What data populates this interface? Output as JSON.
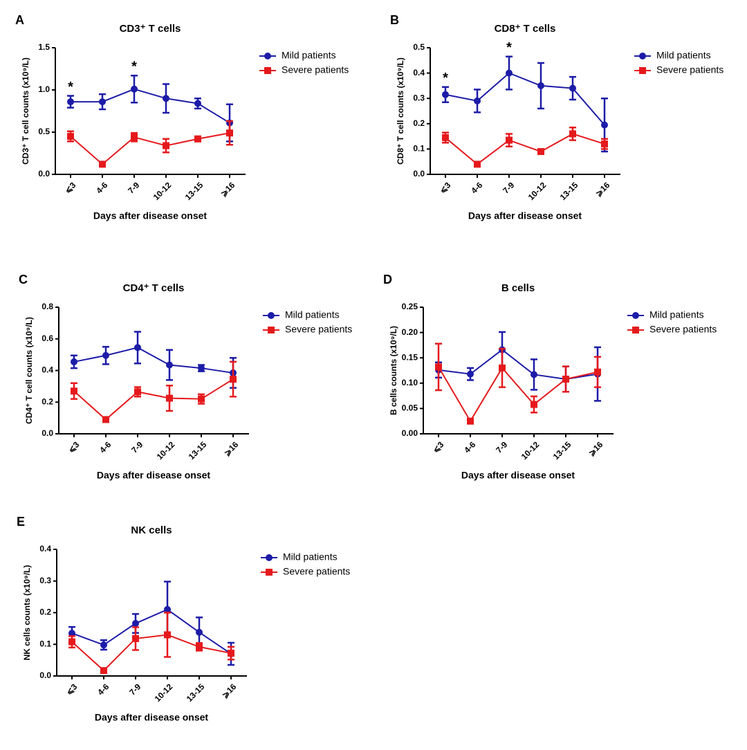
{
  "chart_data": [
    {
      "type": "line",
      "panel": "A",
      "title": "CD3⁺ T cells",
      "ylabel": "CD3⁺ T cell counts (x10⁹/L)",
      "xlabel": "Days after disease onset",
      "categories": [
        "⩽3",
        "4-6",
        "7-9",
        "10-12",
        "13-15",
        "⩾16"
      ],
      "ylim": [
        0,
        1.5
      ],
      "yticks": [
        {
          "value": 0,
          "label": "0.0"
        },
        0.5,
        {
          "value": 1,
          "label": "1.0"
        },
        1.5
      ],
      "legend": "right",
      "series": [
        {
          "name": "Mild patients",
          "color": "#1c1ca8",
          "marker": "circle",
          "values": [
            0.86,
            0.86,
            1.01,
            0.9,
            0.84,
            0.61
          ],
          "errors": [
            0.07,
            0.09,
            0.16,
            0.17,
            0.06,
            0.22
          ]
        },
        {
          "name": "Severe patients",
          "color": "#e5191c",
          "marker": "square",
          "values": [
            0.45,
            0.12,
            0.44,
            0.34,
            0.42,
            0.49
          ],
          "errors": [
            0.06,
            0.01,
            0.05,
            0.08,
            0.03,
            0.14
          ]
        }
      ],
      "annotations": [
        {
          "text": "*",
          "x": "⩽3"
        },
        {
          "text": "*",
          "x": "7-9"
        }
      ]
    },
    {
      "type": "line",
      "panel": "B",
      "title": "CD8⁺ T cells",
      "ylabel": "CD8⁺ T cell counts (x10⁹/L)",
      "xlabel": "Days after disease onset",
      "categories": [
        "⩽3",
        "4-6",
        "7-9",
        "10-12",
        "13-15",
        "⩾16"
      ],
      "ylim": [
        0,
        0.5
      ],
      "yticks": [
        {
          "value": 0,
          "label": "0.0"
        },
        0.1,
        0.2,
        0.3,
        0.4,
        0.5
      ],
      "legend": "right",
      "series": [
        {
          "name": "Mild patients",
          "color": "#1c1ca8",
          "marker": "circle",
          "values": [
            0.315,
            0.29,
            0.4,
            0.35,
            0.34,
            0.195
          ],
          "errors": [
            0.03,
            0.045,
            0.065,
            0.09,
            0.045,
            0.105
          ]
        },
        {
          "name": "Severe patients",
          "color": "#e5191c",
          "marker": "square",
          "values": [
            0.145,
            0.04,
            0.135,
            0.09,
            0.16,
            0.12
          ],
          "errors": [
            0.02,
            0.005,
            0.025,
            0.005,
            0.025,
            0.02
          ]
        }
      ],
      "annotations": [
        {
          "text": "*",
          "x": "⩽3"
        },
        {
          "text": "*",
          "x": "7-9"
        }
      ]
    },
    {
      "type": "line",
      "panel": "C",
      "title": "CD4⁺ T cells",
      "ylabel": "CD4⁺ T cell counts (x10⁹/L)",
      "xlabel": "Days after disease onset",
      "categories": [
        "⩽3",
        "4-6",
        "7-9",
        "10-12",
        "13-15",
        "⩾16"
      ],
      "ylim": [
        0,
        0.8
      ],
      "yticks": [
        {
          "value": 0,
          "label": "0.0"
        },
        0.2,
        0.4,
        0.6,
        0.8
      ],
      "legend": "right",
      "series": [
        {
          "name": "Mild patients",
          "color": "#1c1ca8",
          "marker": "circle",
          "values": [
            0.455,
            0.495,
            0.545,
            0.435,
            0.415,
            0.385
          ],
          "errors": [
            0.04,
            0.055,
            0.1,
            0.095,
            0.02,
            0.095
          ]
        },
        {
          "name": "Severe patients",
          "color": "#e5191c",
          "marker": "square",
          "values": [
            0.27,
            0.09,
            0.265,
            0.225,
            0.22,
            0.345
          ],
          "errors": [
            0.05,
            0.005,
            0.03,
            0.08,
            0.03,
            0.11
          ]
        }
      ]
    },
    {
      "type": "line",
      "panel": "D",
      "title": "B cells",
      "ylabel": "B cells counts (x10⁹/L)",
      "xlabel": "Days after disease onset",
      "categories": [
        "⩽3",
        "4-6",
        "7-9",
        "10-12",
        "13-15",
        "⩾16"
      ],
      "ylim": [
        0,
        0.25
      ],
      "yticks": [
        {
          "value": 0,
          "label": "0.00"
        },
        0.05,
        {
          "value": 0.1,
          "label": "0.10"
        },
        0.15,
        {
          "value": 0.2,
          "label": "0.20"
        },
        0.25
      ],
      "legend": "right",
      "series": [
        {
          "name": "Mild patients",
          "color": "#1c1ca8",
          "marker": "circle",
          "values": [
            0.126,
            0.118,
            0.166,
            0.117,
            0.108,
            0.118
          ],
          "errors": [
            0.015,
            0.012,
            0.035,
            0.03,
            0.025,
            0.053
          ]
        },
        {
          "name": "Severe patients",
          "color": "#e5191c",
          "marker": "square",
          "values": [
            0.132,
            0.025,
            0.13,
            0.058,
            0.108,
            0.122
          ],
          "errors": [
            0.046,
            0.003,
            0.038,
            0.016,
            0.025,
            0.03
          ]
        }
      ]
    },
    {
      "type": "line",
      "panel": "E",
      "title": "NK cells",
      "ylabel": "NK cells counts (x10⁹/L)",
      "xlabel": "Days after disease onset",
      "categories": [
        "⩽3",
        "4-6",
        "7-9",
        "10-12",
        "13-15",
        "⩾16"
      ],
      "ylim": [
        0,
        0.4
      ],
      "yticks": [
        {
          "value": 0,
          "label": "0.0"
        },
        0.1,
        0.2,
        0.3,
        0.4
      ],
      "legend": "right",
      "series": [
        {
          "name": "Mild patients",
          "color": "#1c1ca8",
          "marker": "circle",
          "values": [
            0.135,
            0.098,
            0.166,
            0.21,
            0.138,
            0.07
          ],
          "errors": [
            0.02,
            0.015,
            0.03,
            0.088,
            0.047,
            0.035
          ]
        },
        {
          "name": "Severe patients",
          "color": "#e5191c",
          "marker": "square",
          "values": [
            0.108,
            0.017,
            0.118,
            0.13,
            0.092,
            0.072
          ],
          "errors": [
            0.018,
            0.003,
            0.036,
            0.07,
            0.012,
            0.02
          ]
        }
      ]
    }
  ]
}
